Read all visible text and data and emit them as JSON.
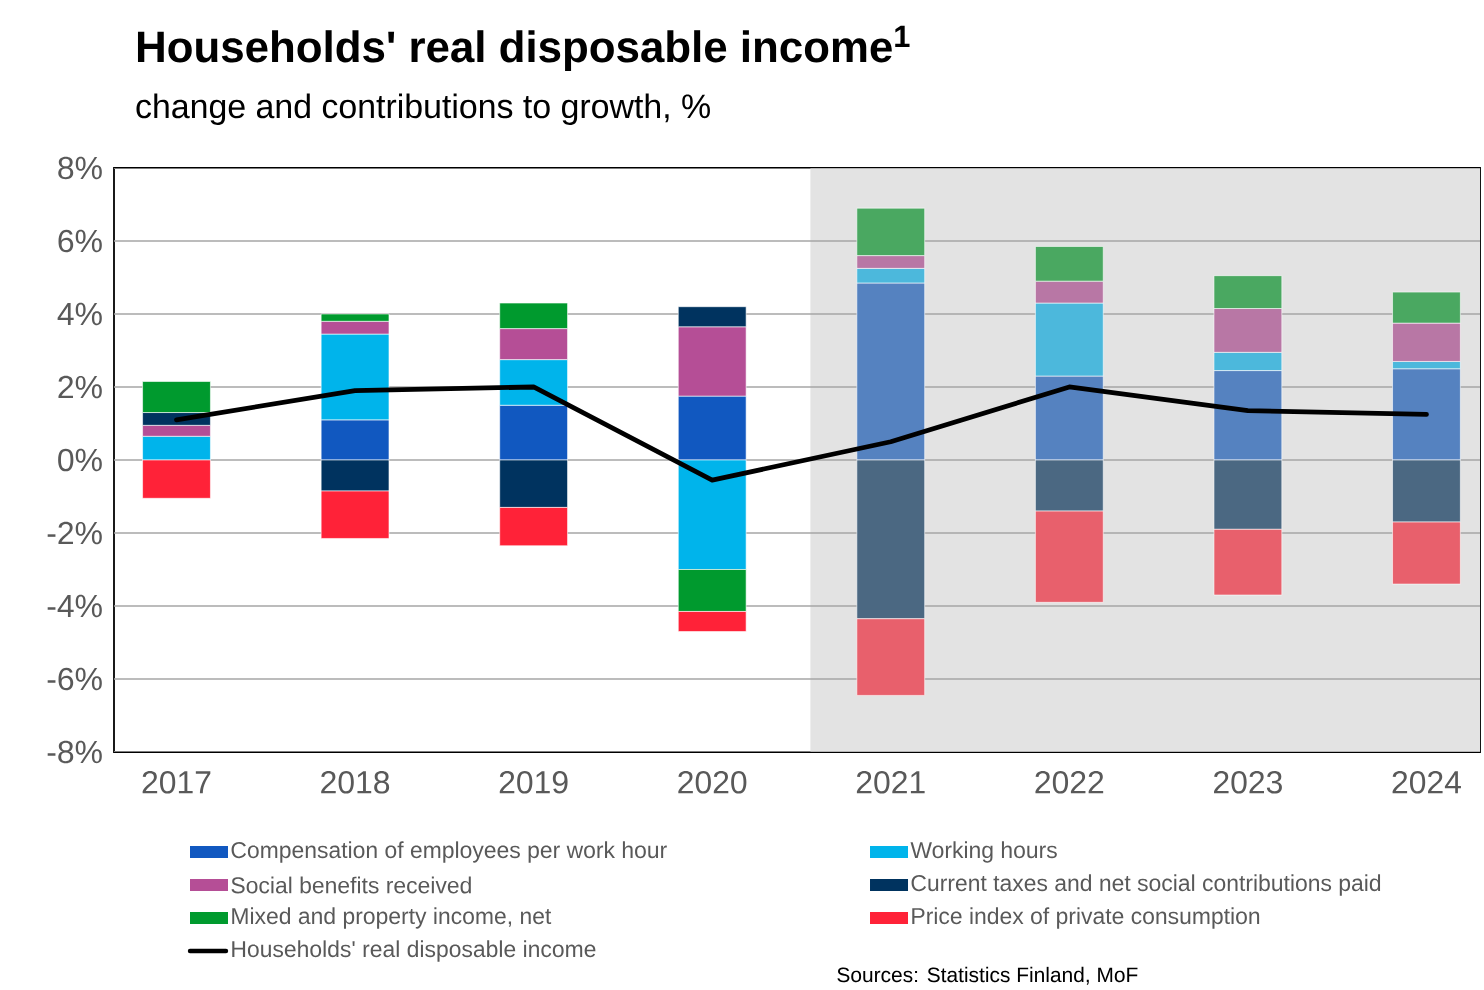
{
  "chart_data": {
    "type": "bar",
    "stacked": true,
    "title": "Households' real disposable income$^{1}$",
    "subtitle": "change and contributions to growth, %",
    "categories": [
      "2017",
      "2018",
      "2019",
      "2020",
      "2021",
      "2022",
      "2023",
      "2024"
    ],
    "series": [
      {
        "name": "Compensation of employees per work hour",
        "color": "#1158c0",
        "colors": [
          "#1158c0",
          "#1158c0",
          "#1158c0",
          "#1158c0",
          "#5582c0",
          "#5582c0",
          "#5582c0",
          "#5582c0"
        ],
        "values": [
          0,
          1.1,
          1.5,
          1.75,
          4.85,
          2.3,
          2.45,
          2.5
        ]
      },
      {
        "name": "Working hours",
        "color": "#00b4eb",
        "colors": [
          "#00b4eb",
          "#00b4eb",
          "#00b4eb",
          "#00b4eb",
          "#4cb8dc",
          "#4cb8dc",
          "#4cb8dc",
          "#4cb8dc"
        ],
        "values": [
          0.65,
          2.35,
          1.25,
          -3.0,
          0.4,
          2.0,
          0.5,
          0.2
        ]
      },
      {
        "name": "Social benefits received",
        "color": "#b54e96",
        "colors": [
          "#b54e96",
          "#b54e96",
          "#b54e96",
          "#b54e96",
          "#b877a5",
          "#b877a5",
          "#b877a5",
          "#b877a5"
        ],
        "values": [
          0.3,
          0.35,
          0.85,
          1.9,
          0.35,
          0.6,
          1.2,
          1.05
        ]
      },
      {
        "name": "Current taxes and net social contributions paid",
        "color": "#00335f",
        "colors": [
          "#00335f",
          "#00335f",
          "#00335f",
          "#00335f",
          "#4b6882",
          "#4b6882",
          "#4b6882",
          "#4b6882"
        ],
        "values": [
          0.35,
          -0.85,
          -1.3,
          0.55,
          -4.35,
          -1.4,
          -1.9,
          -1.7
        ]
      },
      {
        "name": "Mixed and property income, net",
        "color": "#009a2e",
        "colors": [
          "#009a2e",
          "#009a2e",
          "#009a2e",
          "#009a2e",
          "#4aa861",
          "#4aa861",
          "#4aa861",
          "#4aa861"
        ],
        "values": [
          0.85,
          0.2,
          0.7,
          -1.15,
          1.3,
          0.95,
          0.9,
          0.85
        ]
      },
      {
        "name": "Price index of private consumption",
        "color": "#ff2238",
        "colors": [
          "#ff2238",
          "#ff2238",
          "#ff2238",
          "#ff2238",
          "#e8606c",
          "#e8606c",
          "#e8606c",
          "#e8606c"
        ],
        "values": [
          -1.05,
          -1.3,
          -1.05,
          -0.55,
          -2.1,
          -2.5,
          -1.8,
          -1.7
        ]
      },
      {
        "name": "Households' real disposable income",
        "type": "line",
        "color": "#000000",
        "values": [
          1.1,
          1.9,
          2.0,
          -0.55,
          0.5,
          2.0,
          1.35,
          1.25
        ]
      }
    ],
    "ylim": [
      -8,
      8
    ],
    "yticks": [
      {
        "value": -8,
        "label": "-8%"
      },
      {
        "value": -6,
        "label": "-6%"
      },
      {
        "value": -4,
        "label": "-4%"
      },
      {
        "value": -2,
        "label": "-2%"
      },
      {
        "value": 0,
        "label": "0%"
      },
      {
        "value": 2,
        "label": "2%"
      },
      {
        "value": 4,
        "label": "4%"
      },
      {
        "value": 6,
        "label": "6%"
      },
      {
        "value": 8,
        "label": "8%"
      }
    ],
    "grid": "y",
    "legend": "bottom",
    "bands": [
      {
        "axis": "x",
        "from": "2021",
        "to": "2024",
        "color": "#e3e3e3"
      }
    ],
    "annotations": [
      "Sources: Statistics Finland, MoF"
    ]
  }
}
